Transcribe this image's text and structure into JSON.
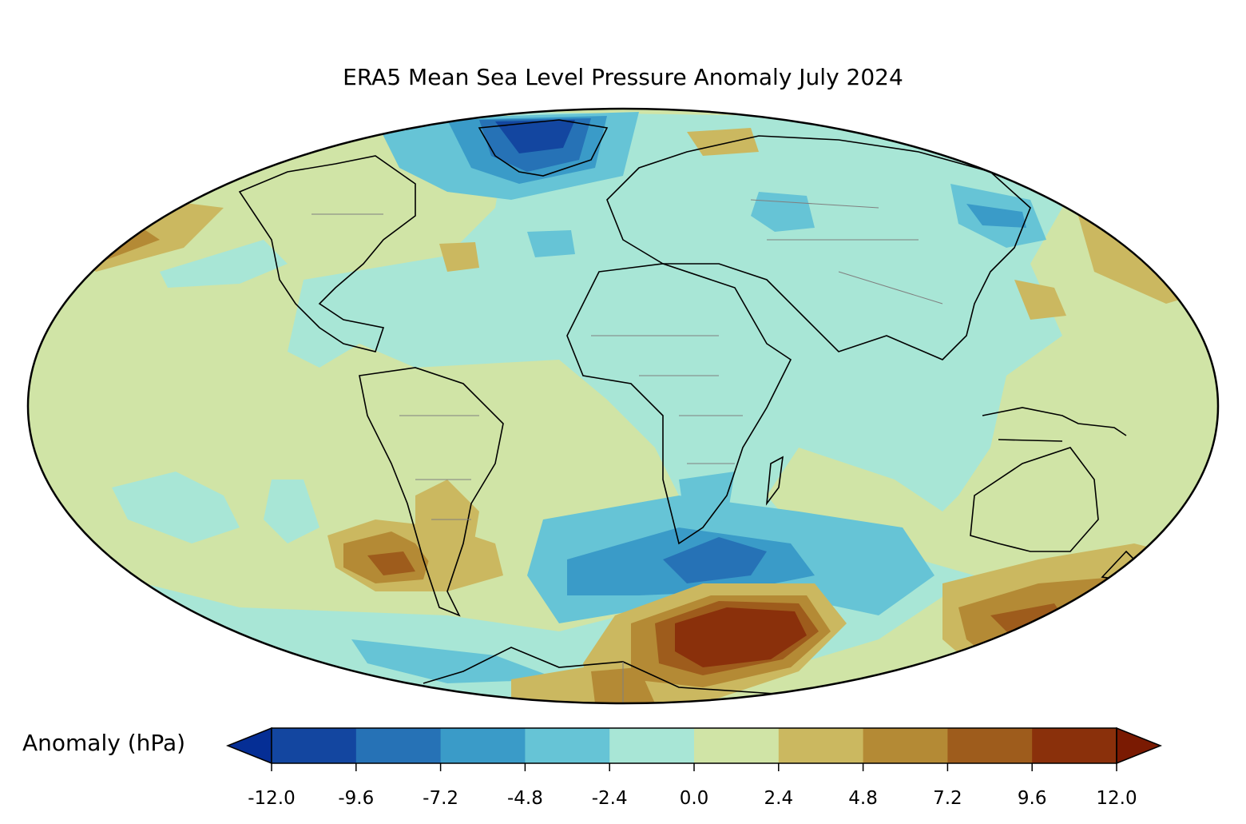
{
  "title": "ERA5 Mean Sea Level Pressure Anomaly July 2024",
  "colorbar": {
    "label": "Anomaly (hPa)",
    "ticks": [
      "-12.0",
      "-9.6",
      "-7.2",
      "-4.8",
      "-2.4",
      "0.0",
      "2.4",
      "4.8",
      "7.2",
      "9.6",
      "12.0"
    ],
    "bins": [
      {
        "from": -12.0,
        "to": -9.6,
        "color": "#1346a0"
      },
      {
        "from": -9.6,
        "to": -7.2,
        "color": "#2672b6"
      },
      {
        "from": -7.2,
        "to": -4.8,
        "color": "#3a9bc8"
      },
      {
        "from": -4.8,
        "to": -2.4,
        "color": "#66c4d6"
      },
      {
        "from": -2.4,
        "to": 0.0,
        "color": "#a8e6d6"
      },
      {
        "from": 0.0,
        "to": 2.4,
        "color": "#d0e4a6"
      },
      {
        "from": 2.4,
        "to": 4.8,
        "color": "#cbb860"
      },
      {
        "from": 4.8,
        "to": 7.2,
        "color": "#b48a35"
      },
      {
        "from": 7.2,
        "to": 9.6,
        "color": "#9e5c1c"
      },
      {
        "from": 9.6,
        "to": 12.0,
        "color": "#8a300b"
      }
    ],
    "under_color": "#052e95",
    "over_color": "#7a1a02"
  },
  "map": {
    "projection": "Mollweide",
    "ocean_base_color": "#d0e4a6",
    "coastline_color": "#000000",
    "border_color": "#808080"
  }
}
